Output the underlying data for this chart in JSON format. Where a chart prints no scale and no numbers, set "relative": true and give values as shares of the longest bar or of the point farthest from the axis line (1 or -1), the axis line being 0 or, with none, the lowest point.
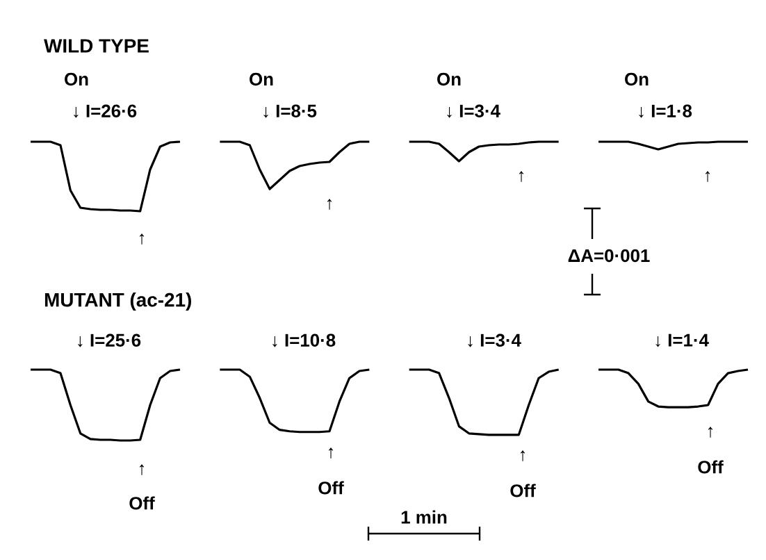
{
  "chart_data": [
    {
      "type": "line",
      "relative": true,
      "title": "WILD TYPE",
      "categories": [
        null,
        null,
        null,
        null,
        null,
        null,
        null,
        null,
        null,
        null,
        null,
        null,
        null,
        null,
        null,
        null,
        null,
        null,
        null,
        null,
        null,
        null,
        null,
        null,
        null,
        null,
        null,
        null,
        null,
        null,
        null,
        null,
        null,
        null,
        null,
        null,
        null,
        null,
        null,
        null,
        null,
        null,
        null,
        null,
        null,
        null,
        null,
        null,
        null,
        null,
        null,
        null,
        null,
        null,
        null,
        null,
        null,
        null,
        null,
        null,
        null,
        null,
        null,
        null,
        null,
        null,
        null,
        null,
        null,
        null,
        null,
        null,
        null
      ],
      "series": [
        {
          "color": "#000000",
          "values": [
            1,
            1,
            1,
            0.95,
            0.3,
            0.05,
            0.03,
            0.02,
            0.02,
            0.01,
            0.01,
            0,
            0.6,
            0.93,
            0.99,
            1,
            null,
            null,
            null,
            null,
            null,
            null,
            null,
            null,
            null,
            null,
            null,
            null,
            null,
            null,
            null,
            null,
            null,
            null,
            null,
            null,
            null,
            null,
            null,
            null,
            null,
            null,
            null,
            null,
            null,
            null,
            null,
            null,
            null,
            null,
            null,
            null,
            null,
            null,
            null,
            null,
            null,
            null,
            null,
            null,
            null,
            null,
            null,
            null,
            null,
            null,
            null,
            null,
            null,
            null,
            null,
            null,
            null
          ]
        },
        {
          "color": "#000000",
          "values": [
            null,
            null,
            null,
            null,
            null,
            null,
            null,
            null,
            null,
            null,
            null,
            null,
            null,
            null,
            null,
            null,
            null,
            null,
            null,
            1,
            1,
            1,
            0.95,
            0.6,
            0.32,
            0.45,
            0.58,
            0.65,
            0.68,
            0.7,
            0.71,
            0.85,
            0.97,
            1,
            1,
            null,
            null,
            null,
            null,
            null,
            null,
            null,
            null,
            null,
            null,
            null,
            null,
            null,
            null,
            null,
            null,
            null,
            null,
            null,
            null,
            null,
            null,
            null,
            null,
            null,
            null,
            null,
            null,
            null,
            null,
            null,
            null,
            null,
            null,
            null,
            null,
            null,
            null
          ]
        },
        {
          "color": "#000000",
          "values": [
            null,
            null,
            null,
            null,
            null,
            null,
            null,
            null,
            null,
            null,
            null,
            null,
            null,
            null,
            null,
            null,
            null,
            null,
            null,
            null,
            null,
            null,
            null,
            null,
            null,
            null,
            null,
            null,
            null,
            null,
            null,
            null,
            null,
            null,
            null,
            null,
            null,
            null,
            1,
            1,
            1,
            0.97,
            0.85,
            0.72,
            0.85,
            0.93,
            0.95,
            0.96,
            0.96,
            0.97,
            0.99,
            1,
            1,
            1,
            null,
            null,
            null,
            null,
            null,
            null,
            null,
            null,
            null,
            null,
            null,
            null,
            null,
            null,
            null,
            null,
            null,
            null,
            null
          ]
        },
        {
          "color": "#000000",
          "values": [
            null,
            null,
            null,
            null,
            null,
            null,
            null,
            null,
            null,
            null,
            null,
            null,
            null,
            null,
            null,
            null,
            null,
            null,
            null,
            null,
            null,
            null,
            null,
            null,
            null,
            null,
            null,
            null,
            null,
            null,
            null,
            null,
            null,
            null,
            null,
            null,
            null,
            null,
            null,
            null,
            null,
            null,
            null,
            null,
            null,
            null,
            null,
            null,
            null,
            null,
            null,
            null,
            null,
            null,
            null,
            null,
            null,
            1,
            1,
            1,
            1,
            0.97,
            0.93,
            0.89,
            0.93,
            0.97,
            0.98,
            0.99,
            0.99,
            1,
            1,
            1,
            1
          ]
        }
      ],
      "annotations": [
        "On",
        "↓ I=26·6",
        "↑",
        "On",
        "↓ I=8·5",
        "↑",
        "On",
        "↓ I=3·4",
        "↑",
        "On",
        "↓ I=1·8",
        "↑",
        "ΔA=0·001"
      ]
    },
    {
      "type": "line",
      "relative": true,
      "title": "MUTANT (ac-21)",
      "categories": [
        null,
        null,
        null,
        null,
        null,
        null,
        null,
        null,
        null,
        null,
        null,
        null,
        null,
        null,
        null,
        null,
        null,
        null,
        null,
        null,
        null,
        null,
        null,
        null,
        null,
        null,
        null,
        null,
        null,
        null,
        null,
        null,
        null,
        null,
        null,
        null,
        null,
        null,
        null,
        null,
        null,
        null,
        null,
        null,
        null,
        null,
        null,
        null,
        null,
        null,
        null,
        null,
        null,
        null,
        null,
        null,
        null,
        null,
        null,
        null,
        null,
        null,
        null,
        null,
        null,
        null,
        null,
        null,
        null,
        null,
        null,
        null,
        null
      ],
      "series": [
        {
          "color": "#000000",
          "values": [
            1,
            1,
            1,
            0.95,
            0.5,
            0.1,
            0.02,
            0.01,
            0.01,
            0,
            0,
            0.01,
            0.5,
            0.88,
            0.98,
            1,
            null,
            null,
            null,
            null,
            null,
            null,
            null,
            null,
            null,
            null,
            null,
            null,
            null,
            null,
            null,
            null,
            null,
            null,
            null,
            null,
            null,
            null,
            null,
            null,
            null,
            null,
            null,
            null,
            null,
            null,
            null,
            null,
            null,
            null,
            null,
            null,
            null,
            null,
            null,
            null,
            null,
            null,
            null,
            null,
            null,
            null,
            null,
            null,
            null,
            null,
            null,
            null,
            null,
            null,
            null,
            null,
            null
          ]
        },
        {
          "color": "#000000",
          "values": [
            null,
            null,
            null,
            null,
            null,
            null,
            null,
            null,
            null,
            null,
            null,
            null,
            null,
            null,
            null,
            null,
            null,
            null,
            null,
            1,
            1,
            1,
            0.9,
            0.6,
            0.25,
            0.15,
            0.13,
            0.12,
            0.12,
            0.12,
            0.13,
            0.55,
            0.88,
            0.98,
            1,
            null,
            null,
            null,
            null,
            null,
            null,
            null,
            null,
            null,
            null,
            null,
            null,
            null,
            null,
            null,
            null,
            null,
            null,
            null,
            null,
            null,
            null,
            null,
            null,
            null,
            null,
            null,
            null,
            null,
            null,
            null,
            null,
            null,
            null,
            null,
            null,
            null,
            null
          ]
        },
        {
          "color": "#000000",
          "values": [
            null,
            null,
            null,
            null,
            null,
            null,
            null,
            null,
            null,
            null,
            null,
            null,
            null,
            null,
            null,
            null,
            null,
            null,
            null,
            null,
            null,
            null,
            null,
            null,
            null,
            null,
            null,
            null,
            null,
            null,
            null,
            null,
            null,
            null,
            null,
            null,
            null,
            null,
            1,
            1,
            1,
            0.95,
            0.6,
            0.2,
            0.1,
            0.09,
            0.08,
            0.08,
            0.08,
            0.08,
            0.5,
            0.88,
            0.97,
            1,
            null,
            null,
            null,
            null,
            null,
            null,
            null,
            null,
            null,
            null,
            null,
            null,
            null,
            null,
            null,
            null,
            null,
            null,
            null
          ]
        },
        {
          "color": "#000000",
          "values": [
            null,
            null,
            null,
            null,
            null,
            null,
            null,
            null,
            null,
            null,
            null,
            null,
            null,
            null,
            null,
            null,
            null,
            null,
            null,
            null,
            null,
            null,
            null,
            null,
            null,
            null,
            null,
            null,
            null,
            null,
            null,
            null,
            null,
            null,
            null,
            null,
            null,
            null,
            null,
            null,
            null,
            null,
            null,
            null,
            null,
            null,
            null,
            null,
            null,
            null,
            null,
            null,
            null,
            null,
            null,
            null,
            null,
            1,
            1,
            1,
            0.95,
            0.8,
            0.55,
            0.48,
            0.47,
            0.47,
            0.47,
            0.48,
            0.5,
            0.8,
            0.95,
            0.98,
            1
          ]
        }
      ],
      "annotations": [
        "↓ I=25·6",
        "↑",
        "Off",
        "↓ I=10·8",
        "↑",
        "Off",
        "↓ I=3·4",
        "↑",
        "Off",
        "↓ I=1·4",
        "↑",
        "Off",
        "1 min"
      ]
    }
  ]
}
